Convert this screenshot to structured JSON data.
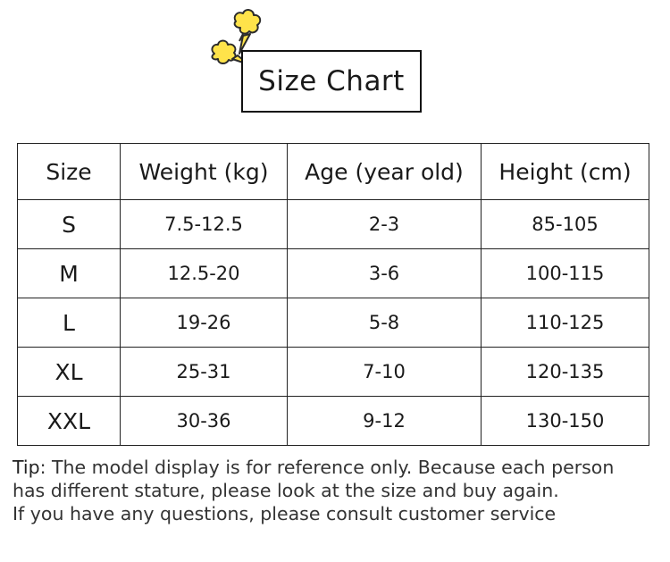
{
  "title": "Size Chart",
  "icons": {
    "decoration": "popcorn-burst-icon"
  },
  "colors": {
    "accent_yellow": "#FFE34A",
    "accent_stroke": "#2b2b2b"
  },
  "table": {
    "headers": [
      "Size",
      "Weight (kg)",
      "Age (year old)",
      "Height (cm)"
    ],
    "rows": [
      {
        "size": "S",
        "weight": "7.5-12.5",
        "age": "2-3",
        "height": "85-105"
      },
      {
        "size": "M",
        "weight": "12.5-20",
        "age": "3-6",
        "height": "100-115"
      },
      {
        "size": "L",
        "weight": "19-26",
        "age": "5-8",
        "height": "110-125"
      },
      {
        "size": "XL",
        "weight": "25-31",
        "age": "7-10",
        "height": "120-135"
      },
      {
        "size": "XXL",
        "weight": "30-36",
        "age": "9-12",
        "height": "130-150"
      }
    ]
  },
  "tip": {
    "label": "Tip",
    "line1": ": The model display is for reference only. Because each person",
    "line2": "has different stature, please look at the size and buy again.",
    "line3": "If you have any questions, please consult customer service"
  }
}
